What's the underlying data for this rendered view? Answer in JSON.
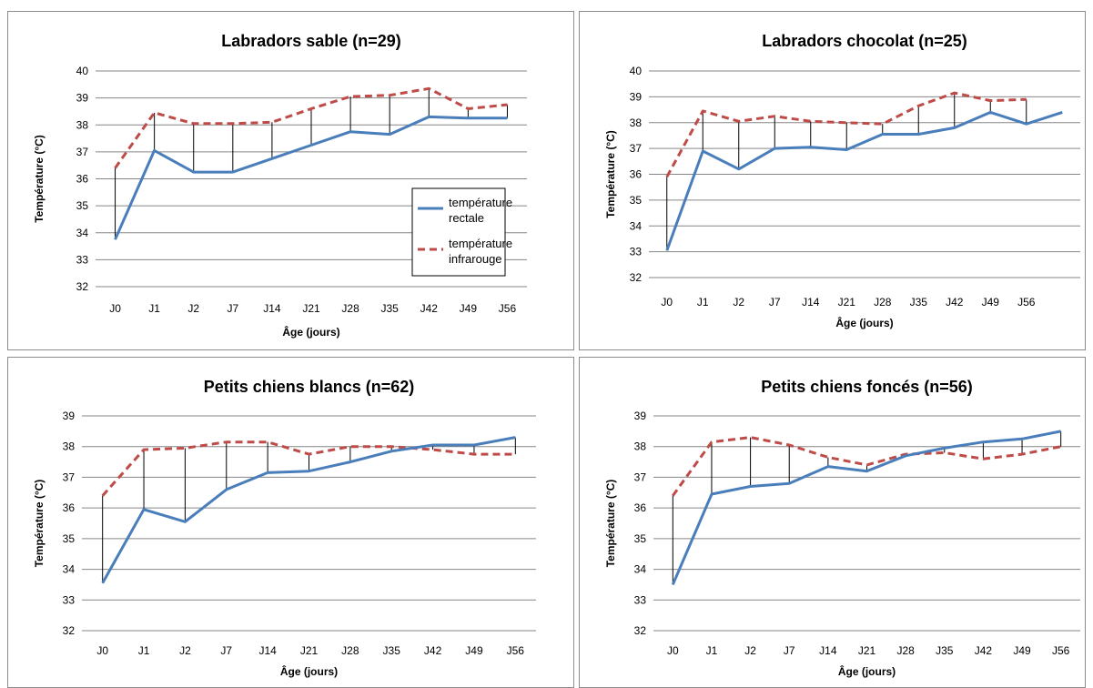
{
  "chart_data": [
    {
      "type": "line",
      "title": "Labradors sable (n=29)",
      "xlabel": "Âge (jours)",
      "ylabel": "Température (°C)",
      "categories": [
        "J0",
        "J1",
        "J2",
        "J7",
        "J14",
        "J21",
        "J28",
        "J35",
        "J42",
        "J49",
        "J56"
      ],
      "ylim": [
        32,
        40
      ],
      "yticks": [
        32,
        33,
        34,
        35,
        36,
        37,
        38,
        39,
        40
      ],
      "grid": "horizontal",
      "legend": {
        "position": "right",
        "entries": [
          {
            "line1": "température",
            "line2": "rectale"
          },
          {
            "line1": "température",
            "line2": "infrarouge"
          }
        ]
      },
      "series": [
        {
          "name": "température rectale",
          "values": [
            33.75,
            37.05,
            36.25,
            36.25,
            36.75,
            37.25,
            37.75,
            37.65,
            38.3,
            38.25,
            38.25
          ]
        },
        {
          "name": "température infrarouge",
          "values": [
            36.4,
            38.45,
            38.05,
            38.05,
            38.1,
            38.6,
            39.05,
            39.1,
            39.35,
            38.6,
            38.75
          ]
        }
      ]
    },
    {
      "type": "line",
      "title": "Labradors chocolat (n=25)",
      "xlabel": "Âge (jours)",
      "ylabel": "Température (°C)",
      "categories": [
        "J0",
        "J1",
        "J2",
        "J7",
        "J14",
        "J21",
        "J28",
        "J35",
        "J42",
        "J49",
        "J56",
        ""
      ],
      "ylim": [
        32,
        40
      ],
      "yticks": [
        32,
        33,
        34,
        35,
        36,
        37,
        38,
        39,
        40
      ],
      "grid": "horizontal",
      "series": [
        {
          "name": "température rectale",
          "values": [
            33.05,
            36.9,
            36.2,
            37.0,
            37.05,
            36.95,
            37.55,
            37.55,
            37.8,
            38.4,
            37.95,
            38.4
          ]
        },
        {
          "name": "température infrarouge",
          "values": [
            35.9,
            38.45,
            38.05,
            38.25,
            38.05,
            38.0,
            37.95,
            38.65,
            39.15,
            38.85,
            38.9,
            null
          ]
        }
      ]
    },
    {
      "type": "line",
      "title": "Petits chiens blancs (n=62)",
      "xlabel": "Âge (jours)",
      "ylabel": "Température (°C)",
      "categories": [
        "J0",
        "J1",
        "J2",
        "J7",
        "J14",
        "J21",
        "J28",
        "J35",
        "J42",
        "J49",
        "J56"
      ],
      "ylim": [
        32,
        39
      ],
      "yticks": [
        32,
        33,
        34,
        35,
        36,
        37,
        38,
        39
      ],
      "grid": "horizontal",
      "series": [
        {
          "name": "température rectale",
          "values": [
            33.55,
            35.95,
            35.55,
            36.6,
            37.15,
            37.2,
            37.5,
            37.85,
            38.05,
            38.05,
            38.3
          ]
        },
        {
          "name": "température infrarouge",
          "values": [
            36.4,
            37.9,
            37.95,
            38.15,
            38.15,
            37.75,
            38.0,
            38.0,
            37.9,
            37.75,
            37.75
          ]
        }
      ]
    },
    {
      "type": "line",
      "title": "Petits chiens foncés (n=56)",
      "xlabel": "Âge (jours)",
      "ylabel": "Température (°C)",
      "categories": [
        "J0",
        "J1",
        "J2",
        "J7",
        "J14",
        "J21",
        "J28",
        "J35",
        "J42",
        "J49",
        "J56"
      ],
      "ylim": [
        32,
        39
      ],
      "yticks": [
        32,
        33,
        34,
        35,
        36,
        37,
        38,
        39
      ],
      "grid": "horizontal",
      "series": [
        {
          "name": "température rectale",
          "values": [
            33.5,
            36.45,
            36.7,
            36.8,
            37.35,
            37.2,
            37.7,
            37.95,
            38.15,
            38.25,
            38.5
          ]
        },
        {
          "name": "température infrarouge",
          "values": [
            36.4,
            38.15,
            38.3,
            38.05,
            37.65,
            37.4,
            37.75,
            37.8,
            37.6,
            37.75,
            38.0
          ]
        }
      ]
    }
  ],
  "colors": {
    "rectale": "#4a7ebb",
    "infrarouge": "#be4b48",
    "grid": "#868686",
    "drop_line": "#000000"
  }
}
